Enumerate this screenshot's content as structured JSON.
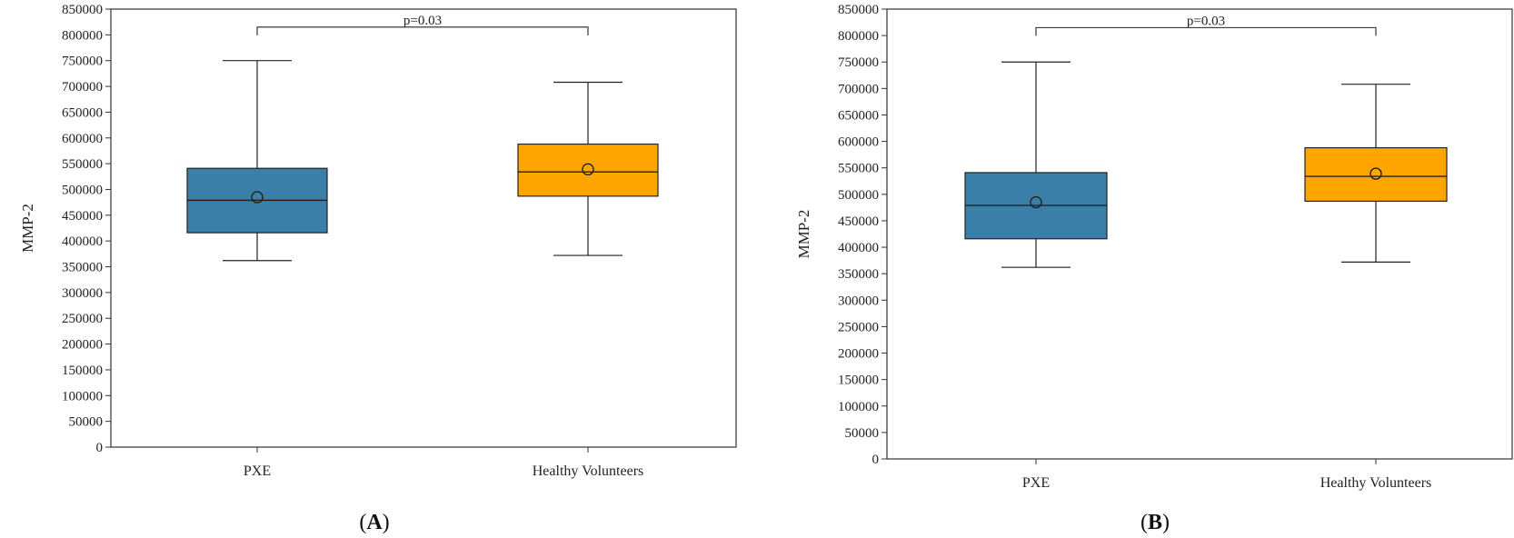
{
  "chart_data": [
    {
      "type": "boxplot",
      "panel_label": "A",
      "ylabel": "MMP-2",
      "ylim": [
        0,
        850000
      ],
      "ytick_step": 50000,
      "categories": [
        "PXE",
        "Healthy Volunteers"
      ],
      "boxes": [
        {
          "category": "PXE",
          "min": 362000,
          "q1": 416000,
          "median": 479000,
          "q3": 541000,
          "max": 750000,
          "mean": 485000,
          "color": "#3a7fa8"
        },
        {
          "category": "Healthy Volunteers",
          "min": 372000,
          "q1": 487000,
          "median": 534000,
          "q3": 588000,
          "max": 708000,
          "mean": 539000,
          "color": "#ffa500"
        }
      ],
      "significance": {
        "label": "p=0.03",
        "y": 815000
      }
    },
    {
      "type": "boxplot",
      "panel_label": "B",
      "ylabel": "MMP-2",
      "ylim": [
        0,
        850000
      ],
      "ytick_step": 50000,
      "categories": [
        "PXE",
        "Healthy Volunteers"
      ],
      "boxes": [
        {
          "category": "PXE",
          "min": 362000,
          "q1": 416000,
          "median": 479000,
          "q3": 541000,
          "max": 750000,
          "mean": 485000,
          "color": "#3a7fa8"
        },
        {
          "category": "Healthy Volunteers",
          "min": 372000,
          "q1": 487000,
          "median": 534000,
          "q3": 588000,
          "max": 708000,
          "mean": 539000,
          "color": "#ffa500"
        }
      ],
      "significance": {
        "label": "p=0.03",
        "y": 815000
      }
    }
  ]
}
